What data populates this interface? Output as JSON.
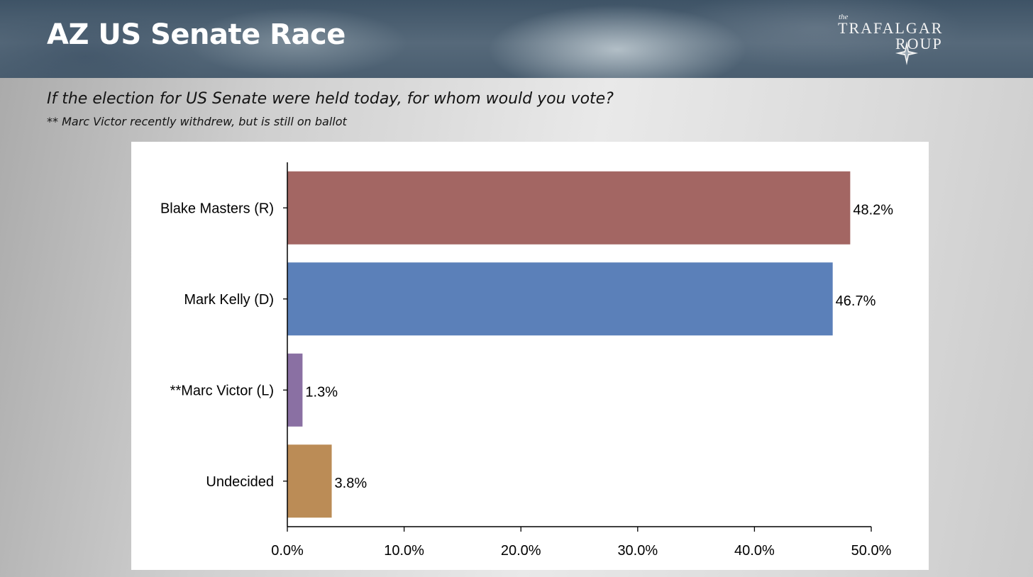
{
  "header": {
    "title": "AZ US Senate Race",
    "logo": {
      "the": "the",
      "line1": "TRAFALGAR",
      "line2": "ROUP"
    }
  },
  "question": "If the election for US Senate were held today, for whom would you vote?",
  "note": "** Marc Victor recently withdrew, but is still on ballot",
  "chart_data": {
    "type": "bar",
    "orientation": "horizontal",
    "categories": [
      "Blake Masters (R)",
      "Mark Kelly (D)",
      "**Marc Victor (L)",
      "Undecided"
    ],
    "values": [
      48.2,
      46.7,
      1.3,
      3.8
    ],
    "value_labels": [
      "48.2%",
      "46.7%",
      "1.3%",
      "3.8%"
    ],
    "colors": [
      "#a36663",
      "#5b80b9",
      "#8a70a3",
      "#bb8c56"
    ],
    "xlim": [
      0,
      50
    ],
    "xticks": [
      0,
      10,
      20,
      30,
      40,
      50
    ],
    "xtick_labels": [
      "0.0%",
      "10.0%",
      "20.0%",
      "30.0%",
      "40.0%",
      "50.0%"
    ],
    "grid": false,
    "title": "",
    "xlabel": "",
    "ylabel": ""
  }
}
